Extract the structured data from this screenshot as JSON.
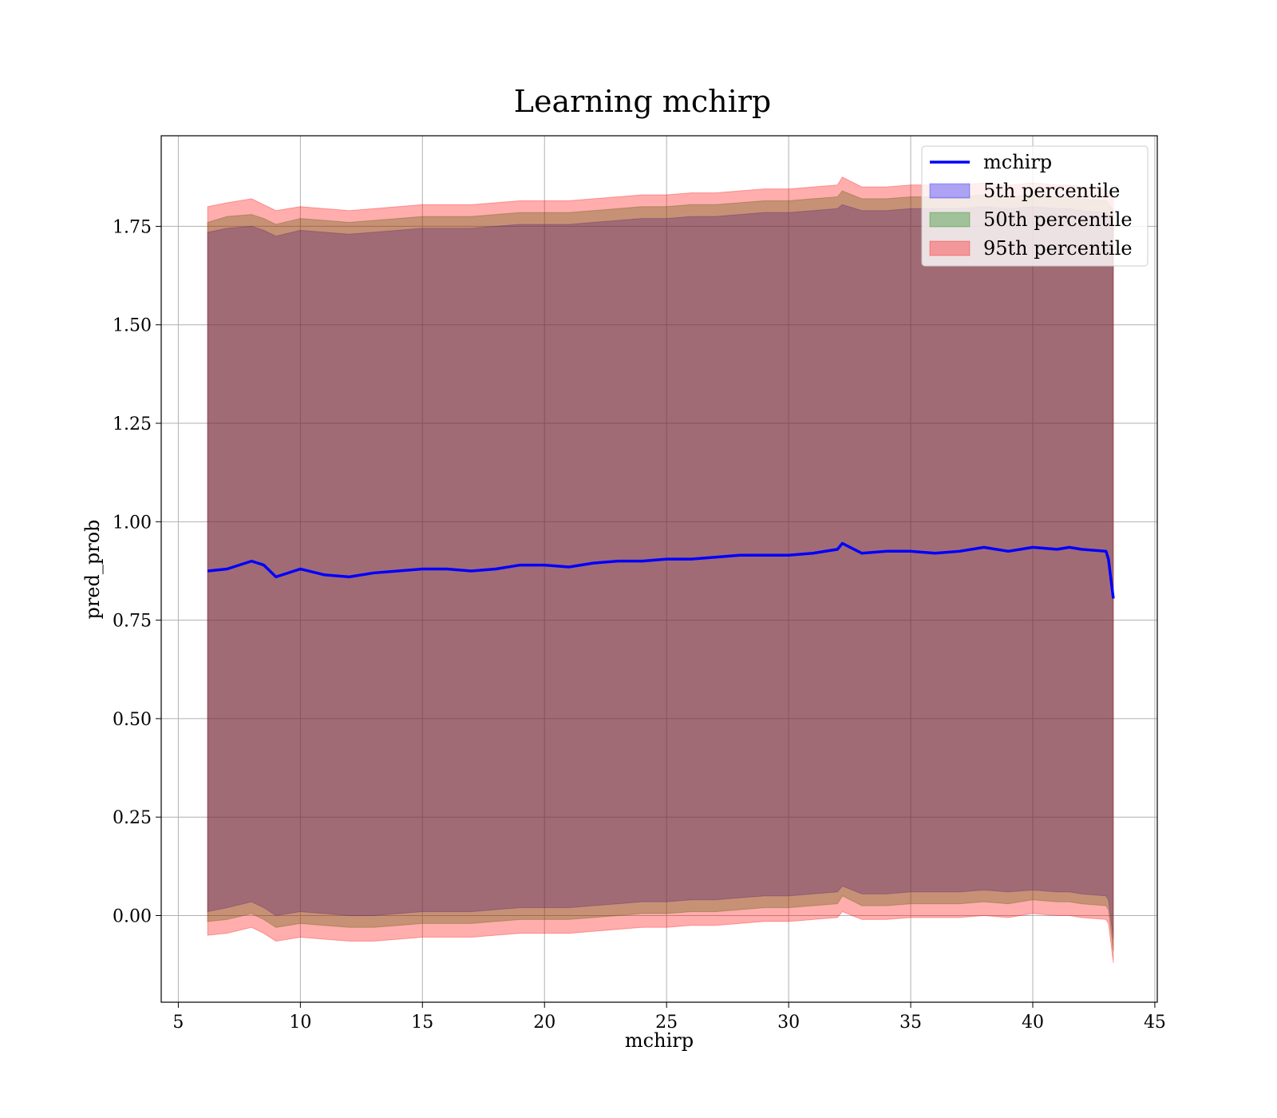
{
  "chart_data": {
    "type": "area",
    "title": "Learning mchirp",
    "xlabel": "mchirp",
    "ylabel": "pred_prob",
    "xlim": [
      4.3,
      45.1
    ],
    "ylim": [
      -0.22,
      1.98
    ],
    "xticks": [
      5,
      10,
      15,
      20,
      25,
      30,
      35,
      40,
      45
    ],
    "xtick_labels": [
      "5",
      "10",
      "15",
      "20",
      "25",
      "30",
      "35",
      "40",
      "45"
    ],
    "yticks": [
      0.0,
      0.25,
      0.5,
      0.75,
      1.0,
      1.25,
      1.5,
      1.75
    ],
    "ytick_labels": [
      "0.00",
      "0.25",
      "0.50",
      "0.75",
      "1.00",
      "1.25",
      "1.50",
      "1.75"
    ],
    "grid": true,
    "legend_position": "top-right",
    "x": [
      6.2,
      7.0,
      8.0,
      8.5,
      9.0,
      10.0,
      11.0,
      12.0,
      13.0,
      14.0,
      15.0,
      16.0,
      17.0,
      18.0,
      19.0,
      20.0,
      21.0,
      22.0,
      23.0,
      24.0,
      25.0,
      26.0,
      27.0,
      28.0,
      29.0,
      30.0,
      31.0,
      32.0,
      32.2,
      33.0,
      34.0,
      35.0,
      36.0,
      37.0,
      38.0,
      39.0,
      40.0,
      41.0,
      41.5,
      42.0,
      43.0,
      43.1,
      43.3
    ],
    "series": [
      {
        "name": "mchirp",
        "kind": "line",
        "color": "#0000ff",
        "values": [
          0.875,
          0.88,
          0.9,
          0.89,
          0.86,
          0.88,
          0.865,
          0.86,
          0.87,
          0.875,
          0.88,
          0.88,
          0.875,
          0.88,
          0.89,
          0.89,
          0.885,
          0.895,
          0.9,
          0.9,
          0.905,
          0.905,
          0.91,
          0.915,
          0.915,
          0.915,
          0.92,
          0.93,
          0.945,
          0.92,
          0.925,
          0.925,
          0.92,
          0.925,
          0.935,
          0.925,
          0.935,
          0.93,
          0.935,
          0.93,
          0.925,
          0.905,
          0.805
        ]
      },
      {
        "name": "5th percentile",
        "kind": "band",
        "color": "#0000ff",
        "lower": [
          0.01,
          0.02,
          0.035,
          0.02,
          0.0,
          0.01,
          0.005,
          0.0,
          0.0,
          0.005,
          0.01,
          0.01,
          0.01,
          0.015,
          0.02,
          0.02,
          0.02,
          0.025,
          0.03,
          0.035,
          0.035,
          0.04,
          0.04,
          0.045,
          0.05,
          0.05,
          0.055,
          0.06,
          0.075,
          0.055,
          0.055,
          0.06,
          0.06,
          0.06,
          0.065,
          0.06,
          0.065,
          0.06,
          0.06,
          0.055,
          0.05,
          0.04,
          -0.06
        ],
        "upper": [
          1.735,
          1.745,
          1.75,
          1.74,
          1.725,
          1.74,
          1.735,
          1.73,
          1.735,
          1.74,
          1.745,
          1.745,
          1.745,
          1.75,
          1.755,
          1.755,
          1.755,
          1.76,
          1.765,
          1.77,
          1.77,
          1.775,
          1.775,
          1.78,
          1.785,
          1.785,
          1.79,
          1.795,
          1.805,
          1.79,
          1.79,
          1.795,
          1.795,
          1.795,
          1.8,
          1.795,
          1.8,
          1.795,
          1.795,
          1.79,
          1.785,
          1.78,
          1.76
        ]
      },
      {
        "name": "50th percentile",
        "kind": "band",
        "color": "#008000",
        "lower": [
          -0.015,
          -0.01,
          0.005,
          -0.01,
          -0.03,
          -0.02,
          -0.025,
          -0.03,
          -0.03,
          -0.025,
          -0.02,
          -0.02,
          -0.02,
          -0.015,
          -0.01,
          -0.01,
          -0.01,
          -0.005,
          0.0,
          0.005,
          0.005,
          0.01,
          0.01,
          0.015,
          0.02,
          0.02,
          0.025,
          0.03,
          0.05,
          0.025,
          0.025,
          0.03,
          0.03,
          0.03,
          0.035,
          0.03,
          0.04,
          0.035,
          0.035,
          0.03,
          0.025,
          0.015,
          -0.09
        ],
        "upper": [
          1.76,
          1.775,
          1.78,
          1.77,
          1.755,
          1.77,
          1.765,
          1.76,
          1.765,
          1.77,
          1.775,
          1.775,
          1.775,
          1.78,
          1.785,
          1.785,
          1.785,
          1.79,
          1.795,
          1.8,
          1.8,
          1.805,
          1.805,
          1.81,
          1.815,
          1.815,
          1.82,
          1.825,
          1.84,
          1.82,
          1.82,
          1.825,
          1.825,
          1.825,
          1.83,
          1.825,
          1.83,
          1.825,
          1.825,
          1.82,
          1.815,
          1.81,
          1.79
        ]
      },
      {
        "name": "95th percentile",
        "kind": "band",
        "color": "#ff0000",
        "lower": [
          -0.05,
          -0.045,
          -0.03,
          -0.045,
          -0.065,
          -0.055,
          -0.06,
          -0.065,
          -0.065,
          -0.06,
          -0.055,
          -0.055,
          -0.055,
          -0.05,
          -0.045,
          -0.045,
          -0.045,
          -0.04,
          -0.035,
          -0.03,
          -0.03,
          -0.025,
          -0.025,
          -0.02,
          -0.015,
          -0.015,
          -0.01,
          -0.005,
          0.01,
          -0.01,
          -0.01,
          -0.005,
          -0.005,
          -0.005,
          0.0,
          -0.005,
          0.005,
          0.0,
          0.0,
          -0.005,
          -0.01,
          -0.02,
          -0.12
        ],
        "upper": [
          1.8,
          1.81,
          1.82,
          1.805,
          1.79,
          1.8,
          1.795,
          1.79,
          1.795,
          1.8,
          1.805,
          1.805,
          1.805,
          1.81,
          1.815,
          1.815,
          1.815,
          1.82,
          1.825,
          1.83,
          1.83,
          1.835,
          1.835,
          1.84,
          1.845,
          1.845,
          1.85,
          1.855,
          1.875,
          1.85,
          1.85,
          1.855,
          1.855,
          1.855,
          1.86,
          1.855,
          1.86,
          1.855,
          1.855,
          1.85,
          1.845,
          1.84,
          1.82
        ]
      }
    ]
  }
}
